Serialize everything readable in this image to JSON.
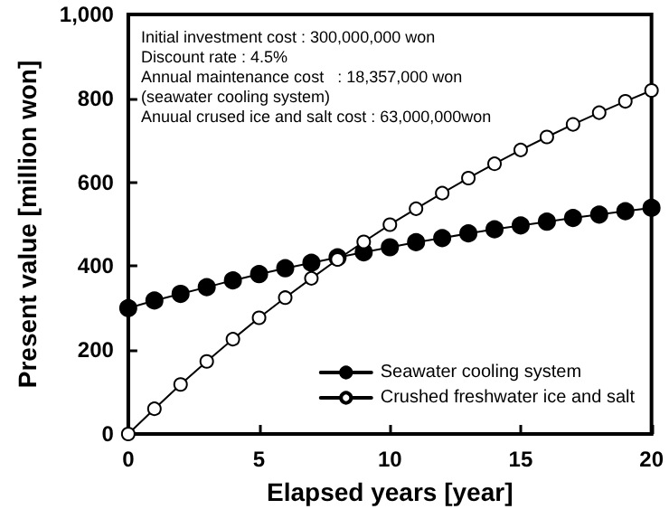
{
  "chart_data": {
    "type": "line",
    "xlabel": "Elapsed years [year]",
    "ylabel": "Present value [million won]",
    "x": [
      0,
      1,
      2,
      3,
      4,
      5,
      6,
      7,
      8,
      9,
      10,
      11,
      12,
      13,
      14,
      15,
      16,
      17,
      18,
      19,
      20
    ],
    "series": [
      {
        "name": "Seawater cooling system",
        "color": "#000000",
        "marker": "circle",
        "values": [
          300,
          318,
          334,
          350,
          366,
          381,
          395,
          408,
          421,
          433,
          445,
          457,
          467,
          478,
          488,
          497,
          506,
          515,
          523,
          531,
          539
        ]
      },
      {
        "name": "Crushed freshwater ice and salt",
        "color": "#ffffff",
        "marker": "circle",
        "values": [
          0,
          60,
          118,
          173,
          226,
          277,
          325,
          371,
          416,
          458,
          499,
          537,
          574,
          610,
          644,
          677,
          708,
          738,
          766,
          793,
          819
        ]
      }
    ],
    "xlim": [
      0,
      20
    ],
    "xticks": [
      0,
      5,
      10,
      15,
      20
    ],
    "ylim": [
      0,
      1000
    ],
    "yticks": [
      0,
      200,
      400,
      600,
      800,
      {
        "value": 1000,
        "label": "1,000"
      }
    ],
    "grid": false,
    "legend": "bottom right",
    "line_style": "solid",
    "annotations": [
      "Initial investment cost : 300,000,000 won",
      "Discount rate : 4.5%",
      "Annual maintenance cost   : 18,357,000 won",
      "(seawater cooling system)",
      "Anuual crused ice and salt cost : 63,000,000won"
    ]
  }
}
